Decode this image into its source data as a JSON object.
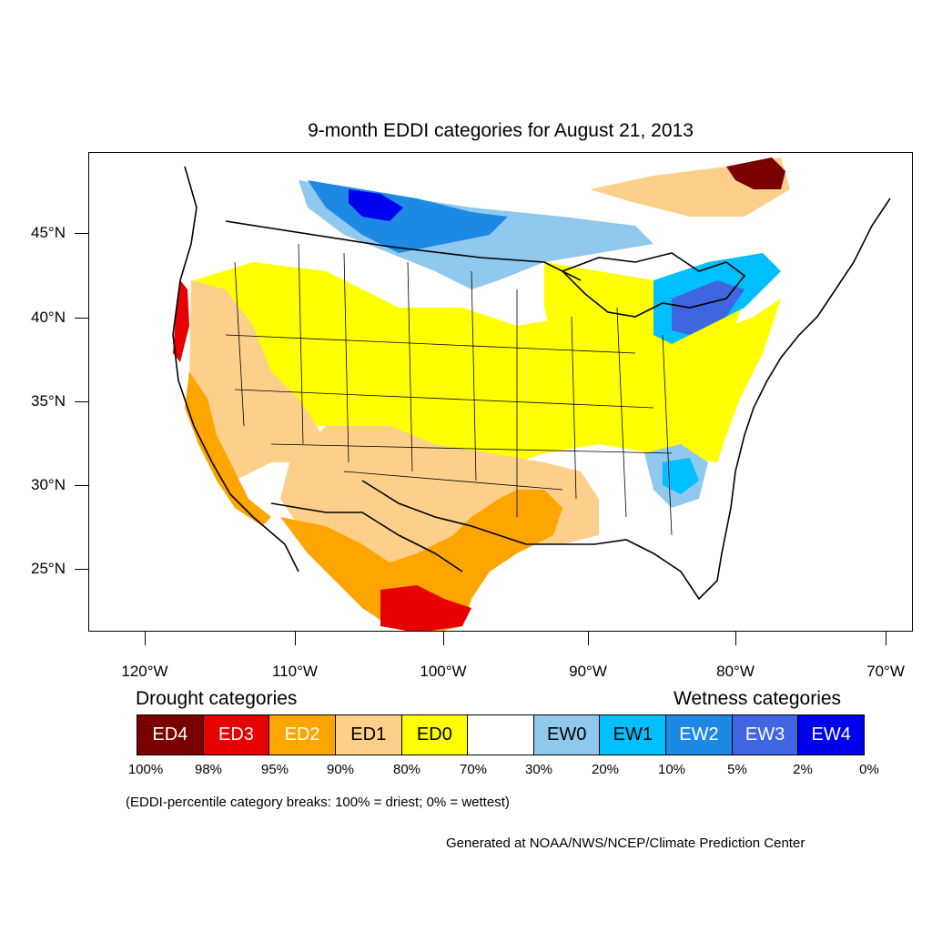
{
  "title": "9-month EDDI categories for August 21, 2013",
  "lat_labels": [
    "45°N",
    "40°N",
    "35°N",
    "30°N",
    "25°N"
  ],
  "lon_labels": [
    "120°W",
    "110°W",
    "100°W",
    "90°W",
    "80°W",
    "70°W"
  ],
  "legend": {
    "drought_title": "Drought categories",
    "wetness_title": "Wetness categories",
    "categories": [
      {
        "label": "ED4",
        "color": "#7a0000",
        "text_color": "#ffffff"
      },
      {
        "label": "ED3",
        "color": "#e60000",
        "text_color": "#ffffff"
      },
      {
        "label": "ED2",
        "color": "#ffa500",
        "text_color": "#ffffff"
      },
      {
        "label": "ED1",
        "color": "#fcd08a",
        "text_color": "#000000"
      },
      {
        "label": "ED0",
        "color": "#ffff00",
        "text_color": "#000000"
      },
      {
        "label": "",
        "color": "#ffffff",
        "text_color": "#000000"
      },
      {
        "label": "EW0",
        "color": "#90c8ee",
        "text_color": "#000000"
      },
      {
        "label": "EW1",
        "color": "#00bfff",
        "text_color": "#000000"
      },
      {
        "label": "EW2",
        "color": "#1e88e5",
        "text_color": "#ffffff"
      },
      {
        "label": "EW3",
        "color": "#3f66e0",
        "text_color": "#ffffff"
      },
      {
        "label": "EW4",
        "color": "#0000ee",
        "text_color": "#ffffff"
      }
    ],
    "breaks": [
      "100%",
      "98%",
      "95%",
      "90%",
      "80%",
      "70%",
      "30%",
      "20%",
      "10%",
      "5%",
      "2%",
      "0%"
    ]
  },
  "note": "(EDDI-percentile category breaks: 100% = driest; 0% = wettest)",
  "credit": "Generated at NOAA/NWS/NCEP/Climate Prediction Center"
}
